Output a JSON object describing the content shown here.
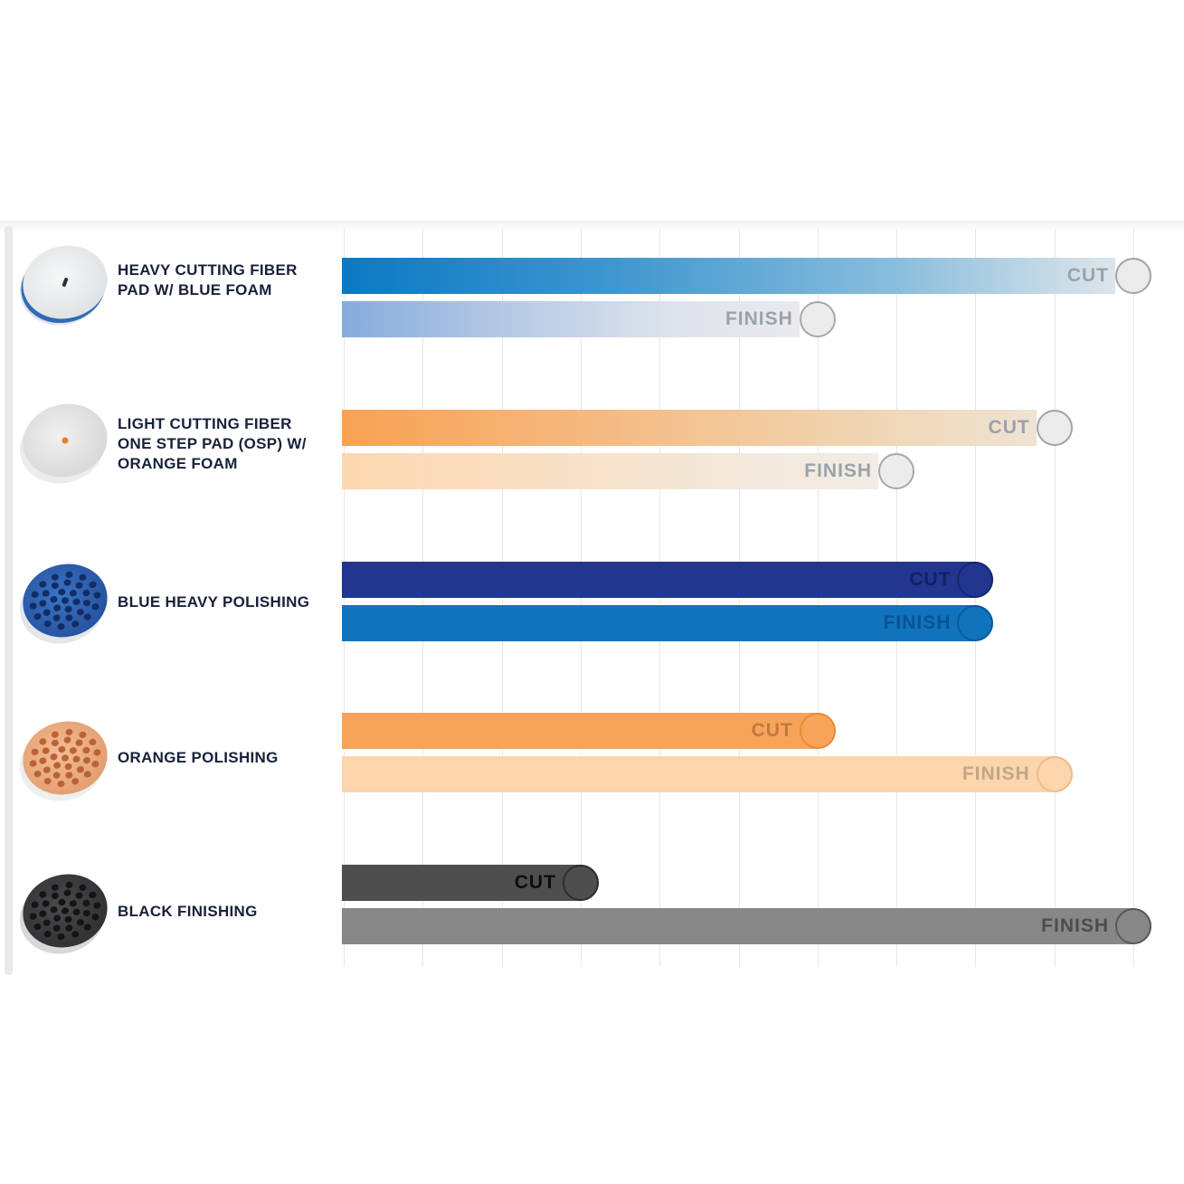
{
  "chart_data": {
    "type": "bar",
    "orientation": "horizontal",
    "title": "",
    "categories": [
      "HEAVY CUTTING FIBER PAD W/ BLUE FOAM",
      "LIGHT CUTTING FIBER ONE STEP PAD (OSP) W/ ORANGE FOAM",
      "BLUE HEAVY POLISHING",
      "ORANGE POLISHING",
      "BLACK FINISHING"
    ],
    "series": [
      {
        "name": "CUT",
        "values": [
          10,
          9,
          8,
          6,
          3
        ]
      },
      {
        "name": "FINISH",
        "values": [
          6,
          7,
          8,
          9,
          10
        ]
      }
    ],
    "value_axis": {
      "min": 0,
      "max": 10,
      "gridline_step": 1,
      "tick_labels_shown": false
    },
    "grid": true,
    "legend": "none"
  },
  "rows": [
    {
      "label_lines": [
        "HEAVY CUTTING FIBER",
        "PAD W/ BLUE FOAM"
      ],
      "pad_key": "heavy-cutting-fiber-blue-foam",
      "cut": {
        "value": 10,
        "label": "CUT",
        "label_color": "#9aa2ab",
        "gradient": [
          "#0b79c3",
          "#3f96cf",
          "#8abedd",
          "#dde5ea"
        ],
        "circle_fill": "#ebebeb",
        "circle_border": "#9fa4a8",
        "attached": false
      },
      "finish": {
        "value": 6,
        "label": "FINISH",
        "label_color": "#9aa2ab",
        "gradient": [
          "#85acdc",
          "#b5c8e4",
          "#dde3ec",
          "#eaeaec"
        ],
        "circle_fill": "#ececec",
        "circle_border": "#a3a8ac",
        "attached": false
      }
    },
    {
      "label_lines": [
        "LIGHT CUTTING FIBER",
        "ONE STEP PAD (OSP) W/",
        "ORANGE FOAM"
      ],
      "pad_key": "light-cutting-fiber-orange-foam",
      "cut": {
        "value": 9,
        "label": "CUT",
        "label_color": "#9aa2ab",
        "gradient": [
          "#f8a253",
          "#f5b87f",
          "#f0d3ae",
          "#efe3d3"
        ],
        "circle_fill": "#ebebeb",
        "circle_border": "#9fa4a8",
        "attached": false
      },
      "finish": {
        "value": 7,
        "label": "FINISH",
        "label_color": "#9aa2ab",
        "gradient": [
          "#fcd8b1",
          "#f9dfc2",
          "#f3e8da",
          "#f1ece4"
        ],
        "circle_fill": "#ececec",
        "circle_border": "#a3a8ac",
        "attached": false
      }
    },
    {
      "label_lines": [
        "BLUE HEAVY POLISHING"
      ],
      "pad_key": "blue-heavy-polishing",
      "cut": {
        "value": 8,
        "label": "CUT",
        "label_color": "#14215f",
        "color": "#20368f",
        "circle_fill": "#20368f",
        "circle_border": "#16266e",
        "attached": true
      },
      "finish": {
        "value": 8,
        "label": "FINISH",
        "label_color": "#0a5195",
        "color": "#1173bb",
        "circle_fill": "#1173bb",
        "circle_border": "#0b5c9e",
        "attached": true
      }
    },
    {
      "label_lines": [
        "ORANGE POLISHING"
      ],
      "pad_key": "orange-polishing",
      "cut": {
        "value": 6,
        "label": "CUT",
        "label_color": "#c07a3a",
        "color": "#f7a45a",
        "circle_fill": "#f7a45a",
        "circle_border": "#e68a3b",
        "attached": true
      },
      "finish": {
        "value": 9,
        "label": "FINISH",
        "label_color": "#c2a687",
        "color": "#fbd5ac",
        "circle_fill": "#fbd5ac",
        "circle_border": "#eebb8b",
        "attached": true
      }
    },
    {
      "label_lines": [
        "BLACK FINISHING"
      ],
      "pad_key": "black-finishing",
      "cut": {
        "value": 3,
        "label": "CUT",
        "label_color": "#0d0d0d",
        "color": "#4e4e4e",
        "circle_fill": "#4e4e4e",
        "circle_border": "#2e2e2e",
        "attached": true
      },
      "finish": {
        "value": 10,
        "label": "FINISH",
        "label_color": "#4d4d4d",
        "color": "#878787",
        "circle_fill": "#878787",
        "circle_border": "#595959",
        "attached": true
      }
    }
  ],
  "pads": {
    "heavy-cutting-fiber-blue-foam": {
      "backing": "#dfe3e8",
      "face1": "#f6f7f8",
      "face2": "#dde0e3",
      "rim": "#2e6cb5",
      "holes": null,
      "center": "#26303a",
      "center_type": "slit"
    },
    "light-cutting-fiber-orange-foam": {
      "backing": "#ececec",
      "face1": "#f0f0f0",
      "face2": "#d6d6d8",
      "rim": null,
      "holes": null,
      "center": "#e0812f",
      "center_type": "dot"
    },
    "blue-heavy-polishing": {
      "backing": "#e3e6ea",
      "face1": "#3a74c4",
      "face2": "#24509c",
      "rim": null,
      "holes": "#122c66",
      "center": null,
      "center_type": null
    },
    "orange-polishing": {
      "backing": "#eceef0",
      "face1": "#f4bc95",
      "face2": "#e29b6e",
      "rim": null,
      "holes": "#b96334",
      "center": null,
      "center_type": null
    },
    "black-finishing": {
      "backing": "#d6d8da",
      "face1": "#4a4a4c",
      "face2": "#2f2f31",
      "rim": null,
      "holes": "#141415",
      "center": null,
      "center_type": null
    }
  },
  "colors": {
    "grid": "#e7e7e7",
    "page_bg": "#ffffff",
    "label_text": "#18213a"
  }
}
